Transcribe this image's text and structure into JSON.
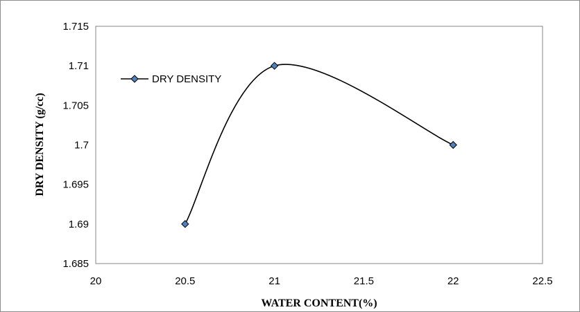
{
  "chart_data": {
    "type": "line",
    "smooth": true,
    "xlabel": "WATER CONTENT(%)",
    "ylabel": "DRY DENSITY (g/cc)",
    "xlim": [
      20,
      22.5
    ],
    "ylim": [
      1.685,
      1.715
    ],
    "x_ticks": [
      "20",
      "20.5",
      "21",
      "21.5",
      "22",
      "22.5"
    ],
    "y_ticks": [
      "1.715",
      "1.71",
      "1.705",
      "1.7",
      "1.695",
      "1.69",
      "1.685"
    ],
    "grid": false,
    "legend_position": "top-left",
    "series": [
      {
        "name": "DRY DENSITY",
        "color": "#000000",
        "marker_color": "#4f81bd",
        "marker": "diamond",
        "x": [
          20.5,
          21,
          22
        ],
        "y": [
          1.69,
          1.71,
          1.7
        ]
      }
    ]
  }
}
